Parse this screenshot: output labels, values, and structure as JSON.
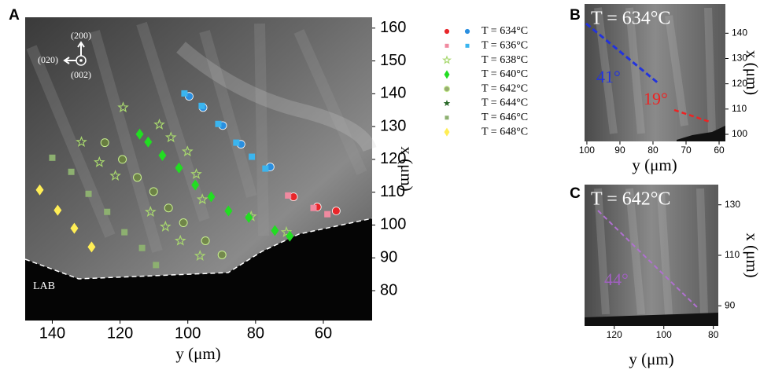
{
  "chart_data": [
    {
      "type": "scatter",
      "panel": "A",
      "x_label": "y (μm)",
      "y_label": "x (μm)",
      "xlim": [
        148,
        45.6
      ],
      "ylim": [
        70.9,
        163.3
      ],
      "xticks": [
        140,
        120,
        100,
        80,
        60
      ],
      "yticks": [
        160,
        150,
        140,
        130,
        120,
        110,
        100,
        90,
        80
      ],
      "annotations": [
        "(200)",
        "(020)",
        "(002)",
        "LAB"
      ],
      "series": [
        {
          "name": "T = 634°C",
          "marker": "circle",
          "groups": [
            {
              "color": "#e8262a",
              "x": [
                68.8,
                61.8,
                56.2
              ],
              "y": [
                108.6,
                105.5,
                104.3
              ]
            },
            {
              "color": "#2a8fe0",
              "x": [
                99.6,
                95.5,
                89.7,
                84.3,
                75.7
              ],
              "y": [
                139.2,
                135.8,
                130.3,
                124.6,
                117.7
              ]
            }
          ]
        },
        {
          "name": "T = 636°C",
          "marker": "square",
          "groups": [
            {
              "color": "#f08aa0",
              "x": [
                70.4,
                62.9,
                58.8
              ],
              "y": [
                109.0,
                105.2,
                103.3
              ]
            },
            {
              "color": "#3bb5ef",
              "x": [
                101.0,
                95.9,
                91.0,
                85.7,
                81.1,
                77.1
              ],
              "y": [
                140.1,
                136.3,
                130.8,
                125.1,
                120.8,
                117.2
              ]
            }
          ]
        },
        {
          "name": "T = 638°C",
          "marker": "star-open",
          "groups": [
            {
              "color": "#a8d86e",
              "x": [
                119.1,
                131.4,
                126.1,
                121.4,
                111.0,
                106.6,
                102.2,
                108.4,
                105.0,
                100.1,
                97.5,
                95.7,
                96.4,
                81.3,
                70.9
              ],
              "y": [
                135.8,
                125.3,
                119.1,
                115.0,
                104.0,
                99.5,
                95.2,
                130.6,
                126.7,
                122.4,
                115.5,
                107.8,
                90.6,
                102.6,
                97.8
              ]
            }
          ]
        },
        {
          "name": "T = 640°C",
          "marker": "diamond",
          "groups": [
            {
              "color": "#22dd22",
              "x": [
                114.2,
                111.7,
                107.5,
                102.6,
                97.8,
                93.1,
                88.0,
                82.0,
                74.3,
                69.9
              ],
              "y": [
                127.7,
                125.3,
                121.2,
                117.4,
                112.2,
                108.6,
                104.3,
                102.3,
                98.3,
                96.6
              ]
            }
          ]
        },
        {
          "name": "T = 642°C",
          "marker": "circle-open",
          "groups": [
            {
              "color": "#6c8a34",
              "x": [
                124.5,
                119.3,
                114.9,
                110.1,
                105.7,
                101.3,
                94.8,
                89.9
              ],
              "y": [
                125.1,
                120.0,
                114.5,
                110.2,
                105.2,
                100.7,
                95.2,
                90.9
              ]
            }
          ]
        },
        {
          "name": "T = 644°C",
          "marker": "star",
          "groups": [
            {
              "color": "#2a6a2a",
              "x": [],
              "y": []
            }
          ]
        },
        {
          "name": "T = 646°C",
          "marker": "square",
          "groups": [
            {
              "color": "#8db070",
              "x": [
                140.0,
                134.4,
                129.3,
                123.8,
                118.7,
                113.5,
                109.4
              ],
              "y": [
                120.5,
                116.2,
                109.5,
                104.0,
                97.8,
                93.0,
                87.8
              ]
            }
          ]
        },
        {
          "name": "T = 648°C",
          "marker": "diamond",
          "groups": [
            {
              "color": "#ffee55",
              "x": [
                143.7,
                138.4,
                133.5,
                128.4
              ],
              "y": [
                110.7,
                104.5,
                99.0,
                93.3
              ]
            }
          ]
        }
      ]
    },
    {
      "type": "image-panel",
      "panel": "B",
      "title": "T = 634°C",
      "x_label": "y (μm)",
      "y_label": "x (μm)",
      "xlim": [
        100.7,
        58.1
      ],
      "ylim": [
        97.2,
        151.6
      ],
      "xticks": [
        100,
        90,
        80,
        70,
        60
      ],
      "yticks": [
        140,
        130,
        120,
        110,
        100
      ],
      "annotations": [
        {
          "text": "41°",
          "color": "#2233dd"
        },
        {
          "text": "19°",
          "color": "#ee2222"
        }
      ]
    },
    {
      "type": "image-panel",
      "panel": "C",
      "title": "T = 642°C",
      "x_label": "y (μm)",
      "y_label": "x (μm)",
      "xlim": [
        132,
        78
      ],
      "ylim": [
        82,
        138
      ],
      "xticks": [
        120,
        100,
        80
      ],
      "yticks": [
        130,
        110,
        90
      ],
      "annotations": [
        {
          "text": "44°",
          "color": "#a060c0"
        }
      ]
    }
  ]
}
